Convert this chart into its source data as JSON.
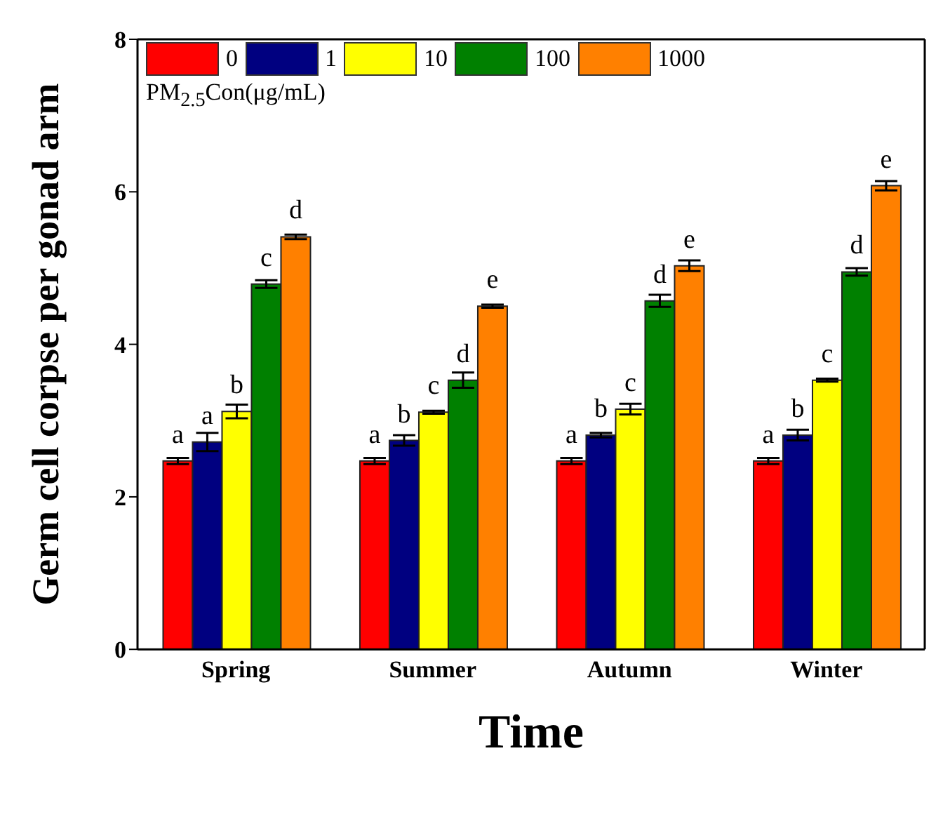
{
  "chart_data": {
    "type": "bar",
    "xlabel": "Time",
    "ylabel": "Germ cell corpse per gonad arm",
    "legend_title": "PM$_{2.5}$Con(μg/mL)",
    "legend": "top left",
    "categories": [
      "Spring",
      "Summer",
      "Autumn",
      "Winter"
    ],
    "ylim": [
      0,
      8
    ],
    "yticks": [
      0,
      2,
      4,
      6,
      8
    ],
    "series": [
      {
        "name": "0",
        "color": "#ff0000",
        "values": [
          2.47,
          2.47,
          2.47,
          2.47
        ],
        "errors": [
          0.04,
          0.04,
          0.04,
          0.04
        ],
        "value_labels": [
          "a",
          "a",
          "a",
          "a"
        ]
      },
      {
        "name": "1",
        "color": "#000080",
        "values": [
          2.72,
          2.74,
          2.81,
          2.81
        ],
        "errors": [
          0.12,
          0.07,
          0.03,
          0.07
        ],
        "value_labels": [
          "a",
          "b",
          "b",
          "b"
        ]
      },
      {
        "name": "10",
        "color": "#ffff00",
        "values": [
          3.12,
          3.11,
          3.15,
          3.53
        ],
        "errors": [
          0.09,
          0.02,
          0.07,
          0.02
        ],
        "value_labels": [
          "b",
          "c",
          "c",
          "c"
        ]
      },
      {
        "name": "100",
        "color": "#008000",
        "values": [
          4.79,
          3.53,
          4.57,
          4.95
        ],
        "errors": [
          0.05,
          0.1,
          0.08,
          0.05
        ],
        "value_labels": [
          "c",
          "d",
          "d",
          "d"
        ]
      },
      {
        "name": "1000",
        "color": "#ff8000",
        "values": [
          5.41,
          4.5,
          5.03,
          6.08
        ],
        "errors": [
          0.03,
          0.02,
          0.07,
          0.06
        ],
        "value_labels": [
          "d",
          "e",
          "e",
          "e"
        ]
      }
    ]
  }
}
